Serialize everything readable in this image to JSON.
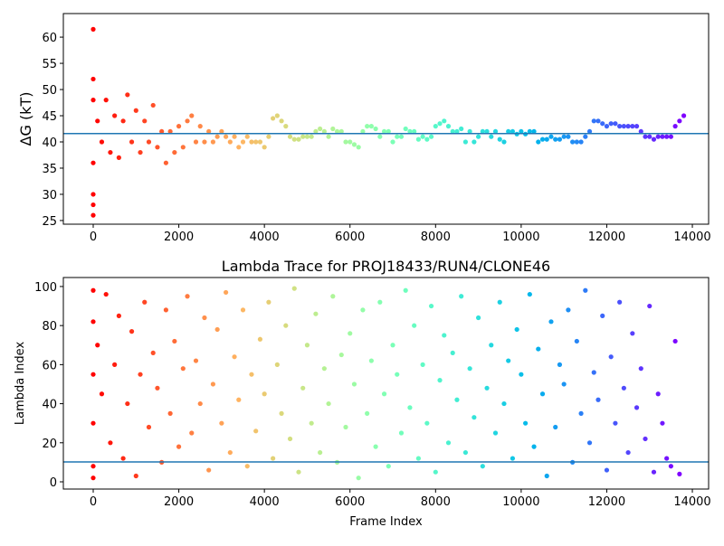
{
  "chart_data": [
    {
      "type": "scatter",
      "ylabel": "ΔG (kT)",
      "colormap": "rainbow_r",
      "x": [
        0,
        0,
        0,
        0,
        0,
        0,
        0,
        100,
        200,
        300,
        400,
        500,
        600,
        700,
        800,
        900,
        1000,
        1100,
        1200,
        1300,
        1400,
        1500,
        1600,
        1700,
        1800,
        1900,
        2000,
        2100,
        2200,
        2300,
        2400,
        2500,
        2600,
        2700,
        2800,
        2900,
        3000,
        3100,
        3200,
        3300,
        3400,
        3500,
        3600,
        3700,
        3800,
        3900,
        4000,
        4100,
        4200,
        4300,
        4400,
        4500,
        4600,
        4700,
        4800,
        4900,
        5000,
        5100,
        5200,
        5300,
        5400,
        5500,
        5600,
        5700,
        5800,
        5900,
        6000,
        6100,
        6200,
        6300,
        6400,
        6500,
        6600,
        6700,
        6800,
        6900,
        7000,
        7100,
        7200,
        7300,
        7400,
        7500,
        7600,
        7700,
        7800,
        7900,
        8000,
        8100,
        8200,
        8300,
        8400,
        8500,
        8600,
        8700,
        8800,
        8900,
        9000,
        9100,
        9200,
        9300,
        9400,
        9500,
        9600,
        9700,
        9800,
        9900,
        10000,
        10100,
        10200,
        10300,
        10400,
        10500,
        10600,
        10700,
        10800,
        10900,
        11000,
        11100,
        11200,
        11300,
        11400,
        11500,
        11600,
        11700,
        11800,
        11900,
        12000,
        12100,
        12200,
        12300,
        12400,
        12500,
        12600,
        12700,
        12800,
        12900,
        13000,
        13100,
        13200,
        13300,
        13400,
        13500,
        13600,
        13700,
        13800
      ],
      "values": [
        61.5,
        52,
        26,
        28,
        30,
        36,
        48,
        44,
        40,
        48,
        38,
        45,
        37,
        44,
        49,
        40,
        46,
        38,
        44,
        40,
        47,
        39,
        42,
        36,
        42,
        38,
        43,
        39,
        44,
        45,
        40,
        43,
        40,
        42,
        40,
        41,
        42,
        41,
        40,
        41,
        39,
        40,
        41,
        40,
        40,
        40,
        39,
        41,
        44.5,
        45,
        44,
        43,
        41,
        40.5,
        40.5,
        41,
        41,
        41,
        42,
        42.5,
        42,
        41,
        42.5,
        42,
        42,
        40,
        40,
        39.5,
        39,
        42,
        43,
        43,
        42.5,
        41,
        42,
        42,
        40,
        41,
        41,
        42.5,
        42,
        42,
        40.5,
        41,
        40.5,
        41,
        43,
        43.5,
        44,
        43,
        42,
        42,
        42.5,
        40,
        42,
        40,
        41,
        42,
        42,
        41,
        42,
        40.5,
        40,
        42,
        42,
        41.5,
        42,
        41.5,
        42,
        42,
        40,
        40.5,
        40.5,
        41,
        40.5,
        40.5,
        41,
        41,
        40,
        40,
        40,
        41,
        42,
        44,
        44,
        43.5,
        43,
        43.5,
        43.5,
        43,
        43,
        43,
        43,
        43,
        42,
        41,
        41,
        40.5,
        41,
        41,
        41,
        41,
        43,
        44,
        45
      ],
      "xlim": [
        -698,
        14380
      ],
      "ylim": [
        24.3,
        64.5
      ],
      "xticks": [
        0,
        2000,
        4000,
        6000,
        8000,
        10000,
        12000,
        14000
      ],
      "yticks": [
        25,
        30,
        35,
        40,
        45,
        50,
        55,
        60
      ],
      "hline": 41.6,
      "hline_color": "#1f77b4"
    },
    {
      "type": "scatter",
      "title": "Lambda Trace for PROJ18433/RUN4/CLONE46",
      "xlabel": "Frame Index",
      "ylabel": "Lambda Index",
      "colormap": "rainbow_r",
      "x": [
        0,
        0,
        0,
        0,
        0,
        0,
        100,
        200,
        300,
        400,
        500,
        600,
        700,
        800,
        900,
        1000,
        1100,
        1200,
        1300,
        1400,
        1500,
        1600,
        1700,
        1800,
        1900,
        2000,
        2100,
        2200,
        2300,
        2400,
        2500,
        2600,
        2700,
        2800,
        2900,
        3000,
        3100,
        3200,
        3300,
        3400,
        3500,
        3600,
        3700,
        3800,
        3900,
        4000,
        4100,
        4200,
        4300,
        4400,
        4500,
        4600,
        4700,
        4800,
        4900,
        5000,
        5100,
        5200,
        5300,
        5400,
        5500,
        5600,
        5700,
        5800,
        5900,
        6000,
        6100,
        6200,
        6300,
        6400,
        6500,
        6600,
        6700,
        6800,
        6900,
        7000,
        7100,
        7200,
        7300,
        7400,
        7500,
        7600,
        7700,
        7800,
        7900,
        8000,
        8100,
        8200,
        8300,
        8400,
        8500,
        8600,
        8700,
        8800,
        8900,
        9000,
        9100,
        9200,
        9300,
        9400,
        9500,
        9600,
        9700,
        9800,
        9900,
        10000,
        10100,
        10200,
        10300,
        10400,
        10500,
        10600,
        10700,
        10800,
        10900,
        11000,
        11100,
        11200,
        11300,
        11400,
        11500,
        11600,
        11700,
        11800,
        11900,
        12000,
        12100,
        12200,
        12300,
        12400,
        12500,
        12600,
        12700,
        12800,
        12900,
        13000,
        13100,
        13200,
        13300,
        13400,
        13500,
        13600,
        13700
      ],
      "values": [
        98,
        82,
        55,
        30,
        8,
        2,
        70,
        45,
        96,
        20,
        60,
        85,
        12,
        40,
        77,
        3,
        55,
        92,
        28,
        66,
        48,
        10,
        88,
        35,
        72,
        18,
        58,
        95,
        25,
        62,
        40,
        84,
        6,
        50,
        78,
        30,
        97,
        15,
        64,
        42,
        88,
        8,
        55,
        26,
        73,
        45,
        92,
        12,
        60,
        35,
        80,
        22,
        99,
        5,
        48,
        70,
        30,
        86,
        15,
        58,
        40,
        95,
        10,
        65,
        28,
        76,
        50,
        2,
        88,
        35,
        62,
        18,
        92,
        45,
        8,
        70,
        55,
        25,
        98,
        38,
        80,
        12,
        60,
        30,
        90,
        5,
        52,
        75,
        20,
        66,
        42,
        95,
        15,
        58,
        33,
        84,
        8,
        48,
        70,
        25,
        92,
        40,
        62,
        12,
        78,
        55,
        30,
        96,
        18,
        68,
        45,
        3,
        82,
        28,
        60,
        50,
        88,
        10,
        72,
        35,
        98,
        20,
        56,
        42,
        85,
        6,
        64,
        30,
        92,
        48,
        15,
        76,
        38,
        58,
        22,
        90,
        5,
        45,
        30,
        12,
        8,
        72,
        4
      ],
      "xlim": [
        -698,
        14380
      ],
      "ylim": [
        -3.7,
        104.6
      ],
      "xticks": [
        0,
        2000,
        4000,
        6000,
        8000,
        10000,
        12000,
        14000
      ],
      "yticks": [
        0,
        20,
        40,
        60,
        80,
        100
      ],
      "hline": 10.2,
      "hline_color": "#1f77b4"
    }
  ]
}
